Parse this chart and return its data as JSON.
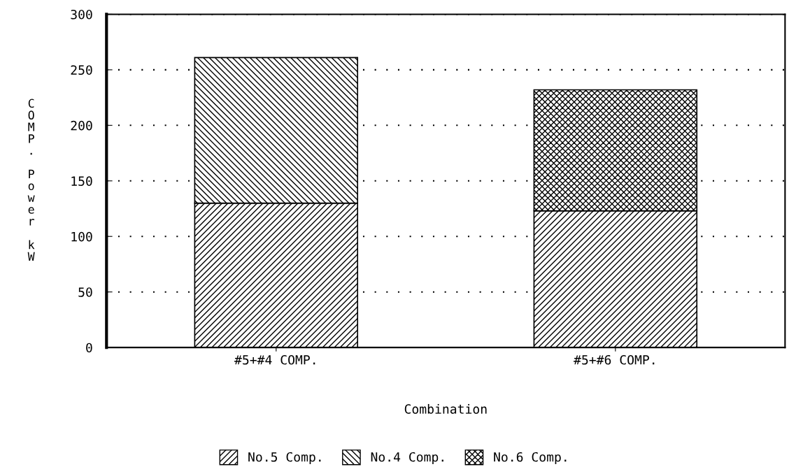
{
  "chart_data": {
    "type": "bar",
    "stacked": true,
    "xlabel": "Combination",
    "ylabel": "COMP. Power kW",
    "categories": [
      "#5+#4 COMP.",
      "#5+#6 COMP."
    ],
    "series": [
      {
        "name": "No.5 Comp.",
        "color": "#000000",
        "values": [
          130,
          123
        ]
      },
      {
        "name": "No.4 Comp.",
        "color": "#000000",
        "values": [
          131,
          null
        ]
      },
      {
        "name": "No.6 Comp.",
        "color": "#000000",
        "values": [
          null,
          109
        ]
      }
    ],
    "ylim": [
      0,
      300
    ],
    "yticks": [
      0,
      50,
      100,
      150,
      200,
      250,
      300
    ],
    "grid": "y",
    "legend": "bottom"
  }
}
